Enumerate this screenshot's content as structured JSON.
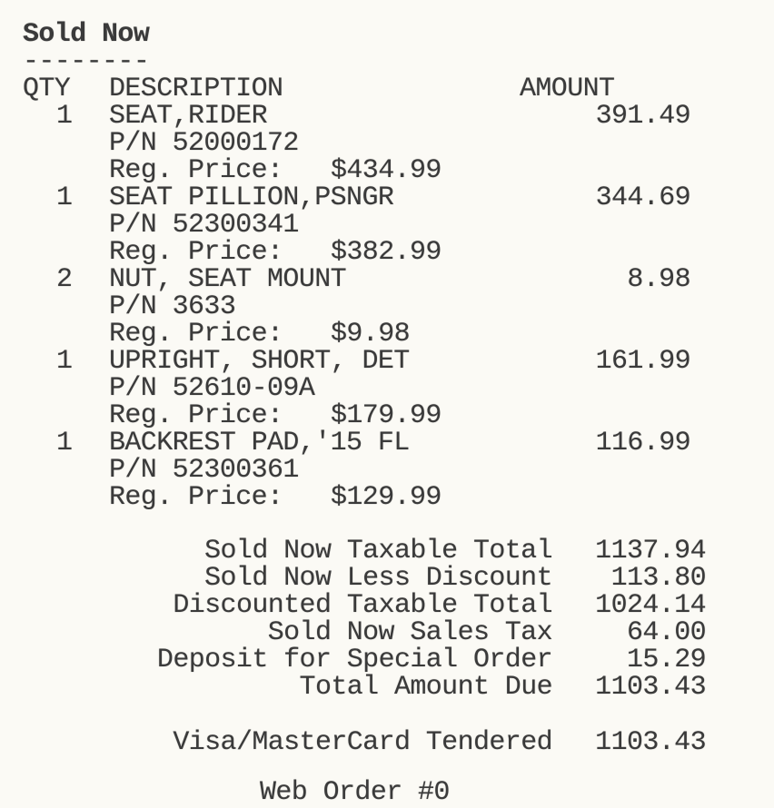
{
  "heading": "Sold Now",
  "divider": "--------",
  "columns": {
    "qty": "QTY",
    "description": "DESCRIPTION",
    "amount": "AMOUNT"
  },
  "reg_price_label": "Reg. Price:",
  "items": [
    {
      "qty": "1",
      "description": "SEAT,RIDER",
      "part_number": "P/N 52000172",
      "reg_price": "$434.99",
      "amount": "391.49"
    },
    {
      "qty": "1",
      "description": "SEAT PILLION,PSNGR",
      "part_number": "P/N 52300341",
      "reg_price": "$382.99",
      "amount": "344.69"
    },
    {
      "qty": "2",
      "description": "NUT, SEAT MOUNT",
      "part_number": "P/N 3633",
      "reg_price": "$9.98",
      "amount": "8.98"
    },
    {
      "qty": "1",
      "description": "UPRIGHT, SHORT, DET",
      "part_number": "P/N 52610-09A",
      "reg_price": "$179.99",
      "amount": "161.99"
    },
    {
      "qty": "1",
      "description": "BACKREST PAD,'15 FL",
      "part_number": "P/N 52300361",
      "reg_price": "$129.99",
      "amount": "116.99"
    }
  ],
  "totals": [
    {
      "label": "Sold Now Taxable Total",
      "value": "1137.94"
    },
    {
      "label": "Sold Now Less Discount",
      "value": "113.80"
    },
    {
      "label": "Discounted Taxable Total",
      "value": "1024.14"
    },
    {
      "label": "Sold Now Sales Tax",
      "value": "64.00"
    },
    {
      "label": "Deposit for Special Order",
      "value": "15.29"
    },
    {
      "label": "Total Amount Due",
      "value": "1103.43"
    }
  ],
  "tender": {
    "label": "Visa/MasterCard Tendered",
    "value": "1103.43"
  },
  "footer": "Web Order #0"
}
